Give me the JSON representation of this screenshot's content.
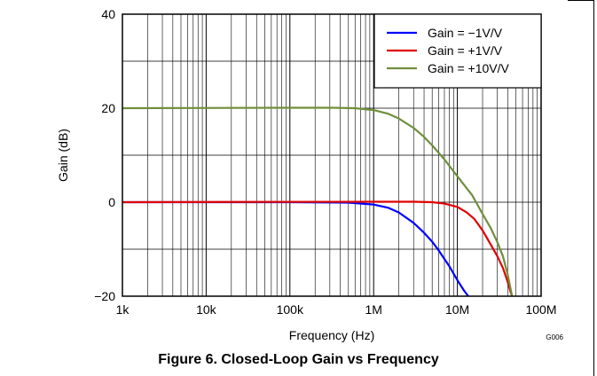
{
  "figure": {
    "caption": "Figure 6. Closed-Loop Gain vs Frequency",
    "code": "G006"
  },
  "colors": {
    "series_blue": "#0000ff",
    "series_red": "#e00000",
    "series_green": "#6f8f3a",
    "grid": "#000000"
  },
  "chart_data": {
    "type": "line",
    "xscale": "log",
    "xlabel": "Frequency (Hz)",
    "ylabel": "Gain (dB)",
    "xlim": [
      1000,
      100000000
    ],
    "ylim": [
      -20,
      40
    ],
    "xticks": [
      {
        "value": 1000,
        "label": "1k"
      },
      {
        "value": 10000,
        "label": "10k"
      },
      {
        "value": 100000,
        "label": "100k"
      },
      {
        "value": 1000000,
        "label": "1M"
      },
      {
        "value": 10000000,
        "label": "10M"
      },
      {
        "value": 100000000,
        "label": "100M"
      }
    ],
    "yticks": [
      {
        "value": -20,
        "label": "−20"
      },
      {
        "value": 0,
        "label": "0"
      },
      {
        "value": 20,
        "label": "20"
      },
      {
        "value": 40,
        "label": "40"
      }
    ],
    "grid": true,
    "legend_position": "top-right",
    "series": [
      {
        "name": "Gain = −1V/V",
        "color": "#0000ff",
        "points": [
          [
            1000,
            0
          ],
          [
            100000,
            0
          ],
          [
            500000,
            -0.1
          ],
          [
            1000000,
            -0.5
          ],
          [
            1500000,
            -1.2
          ],
          [
            2000000,
            -2.2
          ],
          [
            3000000,
            -4.4
          ],
          [
            4000000,
            -6.5
          ],
          [
            5000000,
            -8.4
          ],
          [
            6000000,
            -10.3
          ],
          [
            8000000,
            -13.6
          ],
          [
            10000000,
            -16.6
          ],
          [
            12000000,
            -18.8
          ],
          [
            13500000,
            -20
          ]
        ]
      },
      {
        "name": "Gain = +1V/V",
        "color": "#e00000",
        "points": [
          [
            1000,
            0
          ],
          [
            1000000,
            0.1
          ],
          [
            3000000,
            0.1
          ],
          [
            5000000,
            0
          ],
          [
            7000000,
            -0.3
          ],
          [
            10000000,
            -1
          ],
          [
            13000000,
            -2.2
          ],
          [
            16000000,
            -3.6
          ],
          [
            20000000,
            -6
          ],
          [
            25000000,
            -9
          ],
          [
            30000000,
            -11.5
          ],
          [
            35000000,
            -14
          ],
          [
            40000000,
            -17
          ],
          [
            43000000,
            -19
          ],
          [
            45000000,
            -20
          ]
        ]
      },
      {
        "name": "Gain = +10V/V",
        "color": "#6f8f3a",
        "points": [
          [
            1000,
            20
          ],
          [
            100000,
            20.1
          ],
          [
            300000,
            20.1
          ],
          [
            600000,
            20
          ],
          [
            1000000,
            19.6
          ],
          [
            1500000,
            18.8
          ],
          [
            2000000,
            17.8
          ],
          [
            3000000,
            15.8
          ],
          [
            4000000,
            13.9
          ],
          [
            5000000,
            12.1
          ],
          [
            7000000,
            9.1
          ],
          [
            10000000,
            5.5
          ],
          [
            15000000,
            1.5
          ],
          [
            20000000,
            -2.5
          ],
          [
            25000000,
            -5.5
          ],
          [
            30000000,
            -8.5
          ],
          [
            35000000,
            -11.5
          ],
          [
            40000000,
            -15.5
          ],
          [
            45000000,
            -20
          ]
        ]
      }
    ]
  }
}
